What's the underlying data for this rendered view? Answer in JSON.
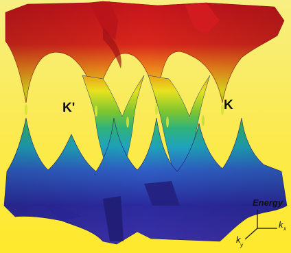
{
  "diagram": {
    "point_labels": {
      "left": "K'",
      "right": "K"
    },
    "axes": {
      "energy": "Energy",
      "kx": "k",
      "kx_sub": "x",
      "ky": "k",
      "ky_sub": "y"
    },
    "colors": {
      "background_top": "#fbf070",
      "background_bottom": "#ffee33",
      "band_top": "#cc1a1a",
      "band_mid_upper": "#e7df20",
      "band_mid": "#34b36a",
      "band_mid_lower": "#1c8fc6",
      "band_bottom": "#2a2a9a"
    }
  }
}
